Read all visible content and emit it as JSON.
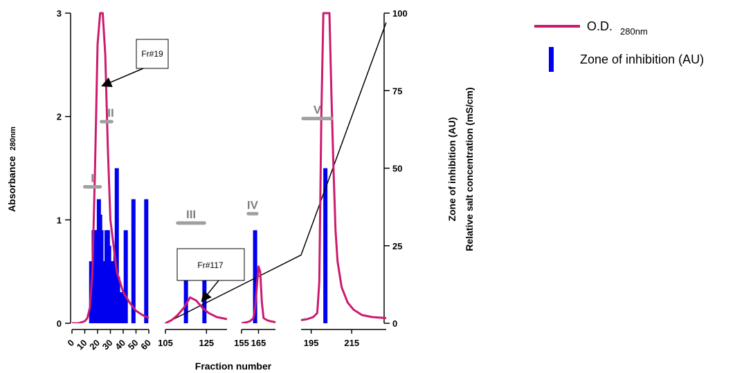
{
  "chart_data": {
    "type": "bar+line",
    "xlabel": "Fraction number",
    "ylabel_left_main": "Absorbance",
    "ylabel_left_sub": "280nm",
    "ylabel_right_1": "Zone of inhibition (AU)",
    "ylabel_right_2": "Relative salt concentration (mS/cm)",
    "ylim_left": [
      0,
      3
    ],
    "ylim_right": [
      0,
      100
    ],
    "left_ticks": [
      "0",
      "1",
      "2",
      "3"
    ],
    "right_ticks": [
      "0",
      "25",
      "50",
      "75",
      "100"
    ],
    "x_segments": [
      {
        "range": [
          0,
          60
        ],
        "ticks": [
          "0",
          "10",
          "20",
          "30",
          "40",
          "50",
          "60"
        ],
        "tick_rotation": -45
      },
      {
        "range": [
          105,
          135
        ],
        "ticks": [
          "105",
          "125"
        ]
      },
      {
        "range": [
          155,
          175
        ],
        "ticks": [
          "155",
          "165"
        ]
      },
      {
        "range": [
          190,
          232
        ],
        "ticks": [
          "195",
          "215"
        ]
      }
    ],
    "legend": {
      "position": "top-right",
      "entries": [
        {
          "label": "O.D.",
          "sub": "280nm",
          "color": "#cc1a6e",
          "kind": "line"
        },
        {
          "label": "Zone of inhibition (AU)",
          "color": "#0000ee",
          "kind": "bar"
        }
      ]
    },
    "series": [
      {
        "name": "O.D. 280nm",
        "axis": "left",
        "color": "#cc1a6e",
        "segments": [
          {
            "x": [
              0,
              5,
              10,
              12,
              14,
              16,
              18,
              20,
              22,
              24,
              26,
              28,
              30,
              35,
              40,
              45,
              50,
              55,
              60
            ],
            "y": [
              0,
              0,
              0.02,
              0.05,
              0.15,
              0.5,
              1.5,
              2.7,
              3.0,
              3.0,
              2.6,
              1.7,
              1.0,
              0.5,
              0.3,
              0.2,
              0.12,
              0.08,
              0.05
            ]
          },
          {
            "x": [
              105,
              108,
              111,
              114,
              117,
              120,
              123,
              126,
              130,
              135
            ],
            "y": [
              0,
              0.03,
              0.08,
              0.15,
              0.25,
              0.22,
              0.15,
              0.1,
              0.06,
              0.04
            ]
          },
          {
            "x": [
              155,
              158,
              160,
              162,
              163,
              164,
              165,
              166,
              167,
              168,
              170,
              172,
              175
            ],
            "y": [
              0,
              0.01,
              0.02,
              0.05,
              0.15,
              0.35,
              0.55,
              0.5,
              0.2,
              0.05,
              0.03,
              0.02,
              0.01
            ]
          },
          {
            "x": [
              190,
              193,
              196,
              198,
              199,
              200,
              201,
              203,
              204,
              205,
              206,
              207,
              208,
              210,
              213,
              216,
              220,
              225,
              232
            ],
            "y": [
              0.03,
              0.04,
              0.06,
              0.1,
              0.4,
              2.0,
              3.0,
              3.0,
              3.0,
              2.2,
              1.5,
              0.9,
              0.6,
              0.35,
              0.2,
              0.13,
              0.08,
              0.06,
              0.05
            ]
          }
        ]
      },
      {
        "name": "Zone of inhibition (AU)",
        "axis": "right",
        "color": "#0000ee",
        "bars_x": [
          15,
          17,
          18,
          19,
          20,
          21,
          22,
          23,
          24,
          25,
          26,
          27,
          28,
          29,
          30,
          31,
          32,
          33,
          34,
          35,
          36,
          37,
          38,
          39,
          40,
          42,
          48,
          58,
          115,
          124,
          163,
          202
        ],
        "bars_y": [
          20,
          30,
          30,
          30,
          30,
          40,
          35,
          30,
          20,
          20,
          20,
          30,
          30,
          25,
          20,
          20,
          20,
          20,
          25,
          50,
          15,
          10,
          10,
          10,
          10,
          30,
          40,
          40,
          15,
          15,
          30,
          50
        ]
      },
      {
        "name": "Relative salt concentration",
        "axis": "right",
        "color": "#000000",
        "x": [
          105,
          190,
          232
        ],
        "y": [
          0,
          22,
          97
        ]
      }
    ],
    "zones": [
      {
        "label": "I",
        "x": [
          10,
          22
        ],
        "y": 1.32
      },
      {
        "label": "II",
        "x": [
          23,
          31
        ],
        "y": 1.95
      },
      {
        "label": "III",
        "x": [
          111,
          124
        ],
        "y": 0.97
      },
      {
        "label": "IV",
        "x": [
          159,
          164
        ],
        "y": 1.06
      },
      {
        "label": "V",
        "x": [
          191,
          205
        ],
        "y": 1.98
      }
    ],
    "annotations": [
      {
        "text": "Fr#19",
        "target_x": 21,
        "target_y": 2.3
      },
      {
        "text": "Fr#117",
        "target_x": 121,
        "target_y": 0.22
      }
    ]
  }
}
